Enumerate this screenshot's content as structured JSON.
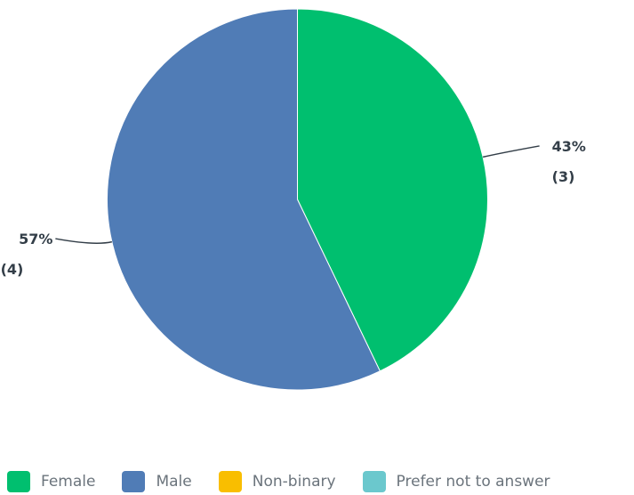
{
  "chart_data": {
    "type": "pie",
    "title": "",
    "slices": [
      {
        "label": "Female",
        "value": 3,
        "percent_label": "43%",
        "count_label": "(3)",
        "color": "#00bf6f"
      },
      {
        "label": "Male",
        "value": 4,
        "percent_label": "57%",
        "count_label": "(4)",
        "color": "#507cb6"
      },
      {
        "label": "Non-binary",
        "value": 0,
        "percent_label": "",
        "count_label": "",
        "color": "#f9be00"
      },
      {
        "label": "Prefer not to answer",
        "value": 0,
        "percent_label": "",
        "count_label": "",
        "color": "#6bc8cd"
      }
    ],
    "legend_position": "bottom"
  }
}
